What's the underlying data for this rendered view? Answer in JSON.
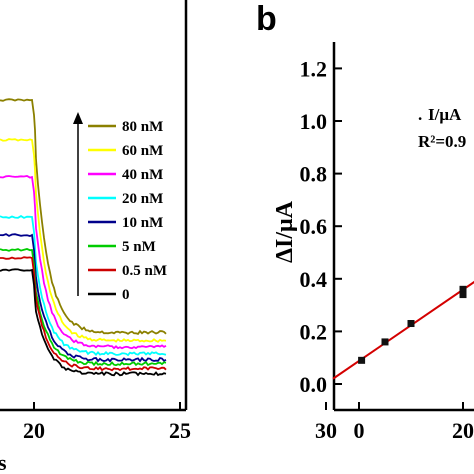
{
  "chart_data": [
    {
      "type": "line",
      "xlim": [
        13.5,
        31
      ],
      "x_ticks": [
        "20",
        "25",
        "30"
      ],
      "x_ticks_values": [
        20,
        25,
        30
      ],
      "xlabel_partial": "s",
      "legend": {
        "placement": "right",
        "entries": [
          {
            "label": "80 nM",
            "color": "#8b8000"
          },
          {
            "label": "60 nM",
            "color": "#ffff00"
          },
          {
            "label": "40 nM",
            "color": "#ff00ff"
          },
          {
            "label": "20 nM",
            "color": "#00ffff"
          },
          {
            "label": "10 nM",
            "color": "#00008b"
          },
          {
            "label": "5 nM",
            "color": "#00cc00"
          },
          {
            "label": "0.5 nM",
            "color": "#cc0000"
          },
          {
            "label": "0",
            "color": "#000000"
          }
        ]
      },
      "series": [
        {
          "color": "#8b8000",
          "plateau": 100,
          "tail": 336
        },
        {
          "color": "#ffff00",
          "plateau": 140,
          "tail": 344
        },
        {
          "color": "#ff00ff",
          "plateau": 177,
          "tail": 350
        },
        {
          "color": "#00ffff",
          "plateau": 217,
          "tail": 357
        },
        {
          "color": "#00008b",
          "plateau": 235,
          "tail": 363
        },
        {
          "color": "#00cc00",
          "plateau": 250,
          "tail": 367
        },
        {
          "color": "#cc0000",
          "plateau": 258,
          "tail": 372
        },
        {
          "color": "#000000",
          "plateau": 270,
          "tail": 377
        }
      ]
    },
    {
      "type": "scatter",
      "panel_label": "b",
      "ylabel": "ΔI/μA",
      "ylim": [
        -0.1,
        1.3
      ],
      "y_ticks": [
        "0.0",
        "0.2",
        "0.4",
        "0.6",
        "0.8",
        "1.0",
        "1.2"
      ],
      "y_ticks_values": [
        0,
        0.2,
        0.4,
        0.6,
        0.8,
        1.0,
        1.2
      ],
      "xlim": [
        -5,
        30
      ],
      "x_ticks": [
        "0",
        "20"
      ],
      "x_ticks_values": [
        0,
        20
      ],
      "points": [
        {
          "x": 0.5,
          "y": 0.09
        },
        {
          "x": 5,
          "y": 0.16
        },
        {
          "x": 10,
          "y": 0.23
        },
        {
          "x": 20,
          "y": 0.36
        },
        {
          "x": 20,
          "y": 0.34
        }
      ],
      "fit_line": {
        "x1": -5,
        "y1": 0.02,
        "x2": 26,
        "y2": 0.44,
        "color": "#d40000"
      },
      "annotation_line1": "I/μA",
      "annotation_line2": "R²=0.9"
    }
  ]
}
